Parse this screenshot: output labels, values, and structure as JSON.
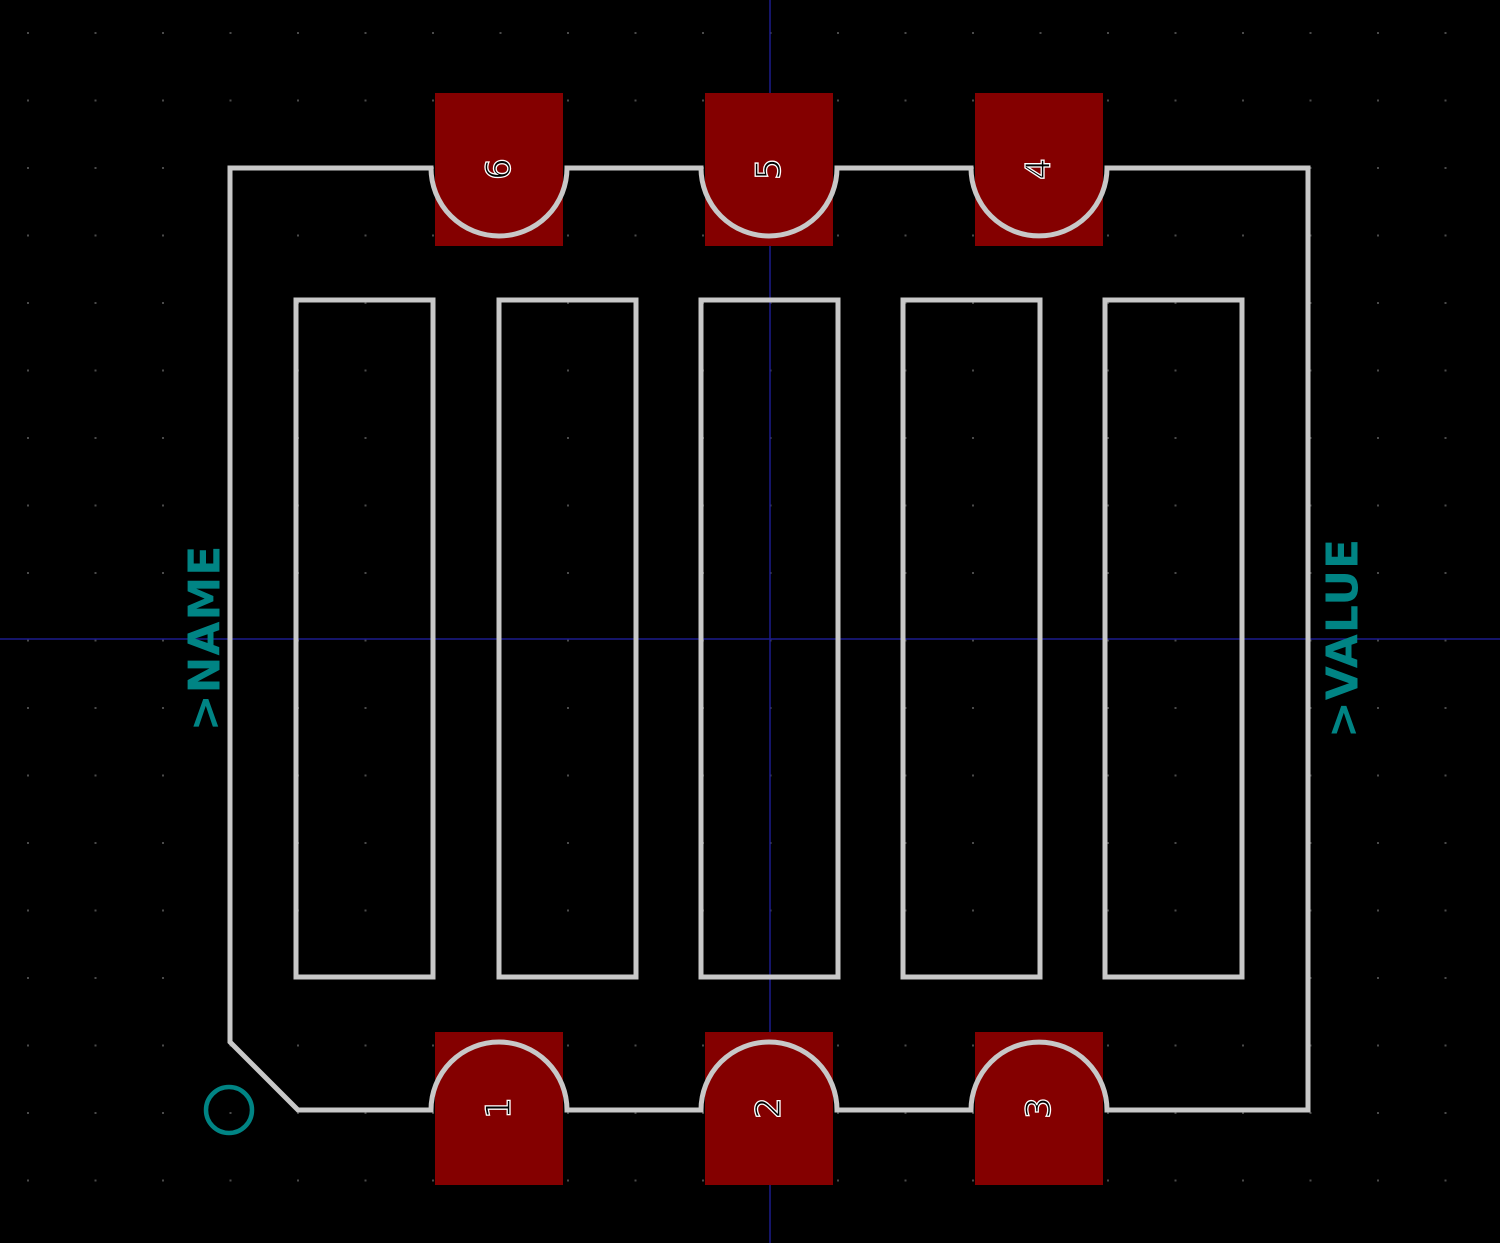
{
  "colors": {
    "background": "#000000",
    "grid_dot": "#4a4a4a",
    "axis": "#1c1c8c",
    "silkscreen": "#c8c8c8",
    "pad": "#840000",
    "ref_text": "#008484"
  },
  "labels": {
    "name": ">NAME",
    "value": ">VALUE"
  },
  "pads": [
    {
      "number": "1"
    },
    {
      "number": "2"
    },
    {
      "number": "3"
    },
    {
      "number": "4"
    },
    {
      "number": "5"
    },
    {
      "number": "6"
    }
  ],
  "pin1_marker_icon": "circle-outline-icon"
}
